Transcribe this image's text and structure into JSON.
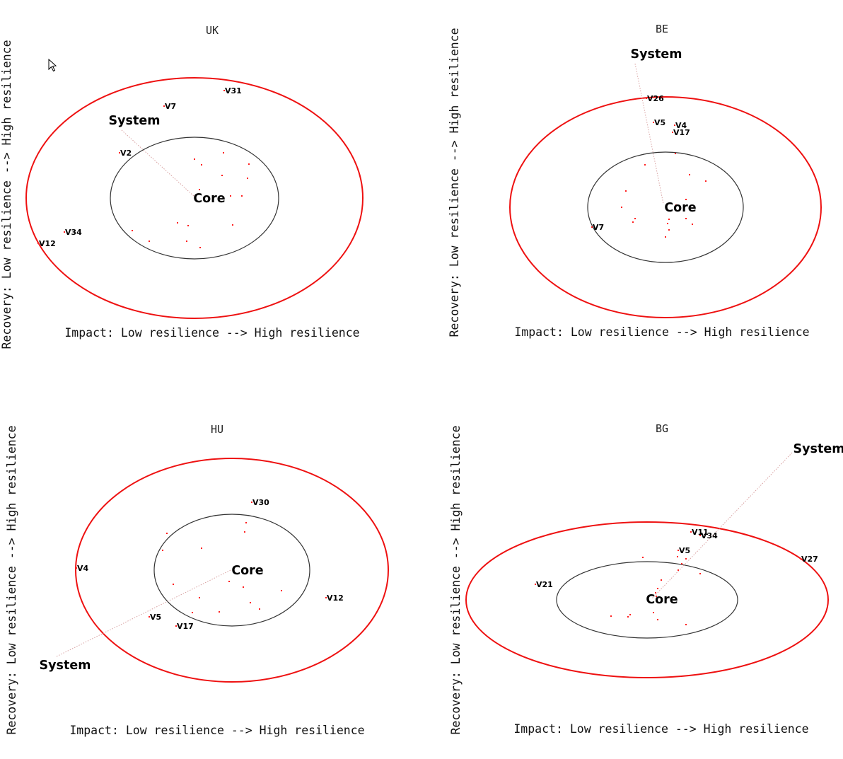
{
  "chart_data": [
    {
      "type": "scatter",
      "title": "UK",
      "xlabel": "Impact: Low resilience --> High resilience",
      "ylabel": "Recovery: Low resilience  --> High resilience",
      "core_label": "Core",
      "system_label": "System",
      "colors": {
        "outer_ring": "#ee1111",
        "inner_ring": "#333333",
        "points": "#ff2020"
      },
      "variables": [
        "V31",
        "V7",
        "V2",
        "V34",
        "V12"
      ],
      "unlabeled_points": 16
    },
    {
      "type": "scatter",
      "title": "BE",
      "xlabel": "Impact: Low resilience --> High resilience",
      "ylabel": "Recovery: Low resilience  --> High resilience",
      "core_label": "Core",
      "system_label": "System",
      "colors": {
        "outer_ring": "#ee1111",
        "inner_ring": "#333333",
        "points": "#ff2020"
      },
      "variables": [
        "V26",
        "V5",
        "V4",
        "V17",
        "V7"
      ],
      "unlabeled_points": 16
    },
    {
      "type": "scatter",
      "title": "HU",
      "xlabel": "Impact: Low resilience --> High resilience",
      "ylabel": "Recovery: Low resilience  --> High resilience",
      "core_label": "Core",
      "system_label": "System",
      "colors": {
        "outer_ring": "#ee1111",
        "inner_ring": "#333333",
        "points": "#ff2020"
      },
      "variables": [
        "V30",
        "V4",
        "V12",
        "V5",
        "V17"
      ],
      "unlabeled_points": 14
    },
    {
      "type": "scatter",
      "title": "BG",
      "xlabel": "Impact: Low resilience --> High resilience",
      "ylabel": "Recovery: Low resilience  --> High resilience",
      "core_label": "Core",
      "system_label": "System",
      "colors": {
        "outer_ring": "#ee1111",
        "inner_ring": "#333333",
        "points": "#ff2020"
      },
      "variables": [
        "V11",
        "V34",
        "V5",
        "V27",
        "V21"
      ],
      "unlabeled_points": 13
    }
  ]
}
